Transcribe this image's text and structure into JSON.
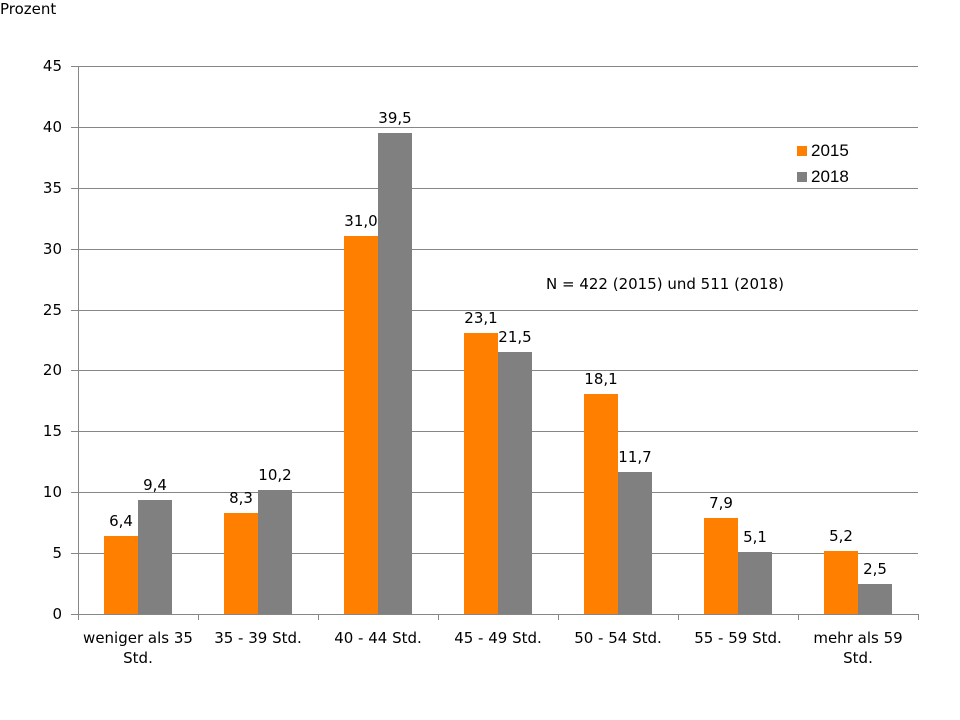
{
  "chart_data": {
    "type": "bar",
    "title": "",
    "xlabel": "",
    "ylabel": "Prozent",
    "ylim": [
      0,
      45
    ],
    "yticks": [
      "0",
      "5",
      "10",
      "15",
      "20",
      "25",
      "30",
      "35",
      "40",
      "45"
    ],
    "grid": true,
    "legend_position": "top-right inside",
    "categories": [
      "weniger als 35 Std.",
      "35 - 39 Std.",
      "40 - 44 Std.",
      "45 - 49 Std.",
      "50 - 54 Std.",
      "55 - 59 Std.",
      "mehr als 59 Std."
    ],
    "series": [
      {
        "name": "2015",
        "color": "#FF7F00",
        "values": [
          6.4,
          8.3,
          31.0,
          23.1,
          18.1,
          7.9,
          5.2
        ],
        "labels": [
          "6,4",
          "8,3",
          "31,0",
          "23,1",
          "18,1",
          "7,9",
          "5,2"
        ]
      },
      {
        "name": "2018",
        "color": "#808080",
        "values": [
          9.4,
          10.2,
          39.5,
          21.5,
          11.7,
          5.1,
          2.5
        ],
        "labels": [
          "9,4",
          "10,2",
          "39,5",
          "21,5",
          "11,7",
          "5,1",
          "2,5"
        ]
      }
    ],
    "annotations": [
      "N = 422 (2015) und 511 (2018)"
    ]
  },
  "labels": {
    "ylabel": "Prozent",
    "annotation": "N = 422 (2015) und 511 (2018)",
    "categories_lines": [
      [
        "weniger als 35",
        "Std."
      ],
      [
        "35 - 39 Std."
      ],
      [
        "40 - 44 Std."
      ],
      [
        "45 - 49 Std."
      ],
      [
        "50 - 54 Std."
      ],
      [
        "55 - 59 Std."
      ],
      [
        "mehr als 59",
        "Std."
      ]
    ]
  }
}
